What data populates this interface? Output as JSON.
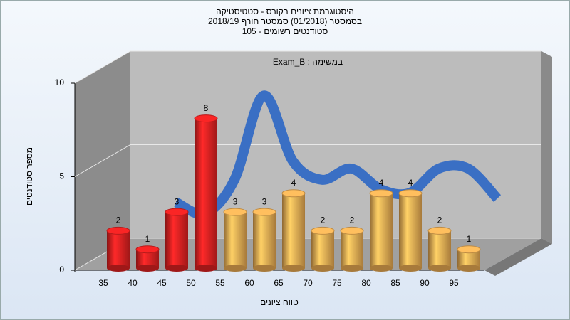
{
  "chart_data": {
    "type": "bar3d",
    "title_lines": [
      "היסטוגרמת ציונים בקורס - סטטיסטיקה",
      "בסמסטר  (01/2018)  סמסטר חורף 2018/19",
      "סטודנטים רשומים - 105"
    ],
    "annotation": "Exam_B : במשימה",
    "x_label": "טווח ציונים",
    "y_label": "מספר סטודנטים",
    "categories": [
      "35",
      "40",
      "45",
      "50",
      "55",
      "60",
      "65",
      "70",
      "75",
      "80",
      "85",
      "90",
      "95"
    ],
    "values": [
      2,
      1,
      3,
      8,
      3,
      3,
      4,
      2,
      2,
      4,
      4,
      2,
      1
    ],
    "colors": [
      "#e32222",
      "#e32222",
      "#e32222",
      "#e32222",
      "#eeae55",
      "#eeae55",
      "#eeae55",
      "#eeae55",
      "#eeae55",
      "#eeae55",
      "#eeae55",
      "#eeae55",
      "#eeae55"
    ],
    "curve": {
      "color": "#3a6fc4",
      "values": [
        null,
        2.8,
        2.2,
        4,
        8.5,
        5,
        4,
        4.6,
        3.5,
        3.3,
        4.6,
        4.6,
        3
      ]
    },
    "ylim": [
      0,
      10
    ],
    "yticks": [
      0,
      5,
      10
    ],
    "grid": true
  }
}
